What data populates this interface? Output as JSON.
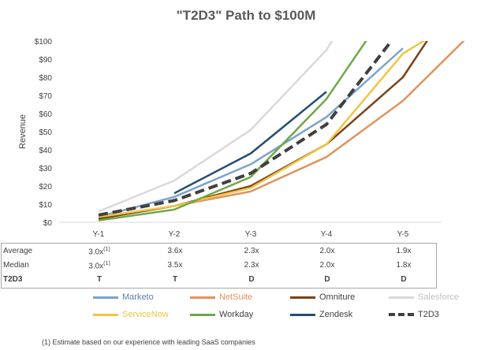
{
  "chart_data": {
    "type": "line",
    "title": "\"T2D3\" Path to $100M",
    "ylabel": "Revenue",
    "xlabel": "",
    "categories": [
      "Y-1",
      "Y-2",
      "Y-3",
      "Y-4",
      "Y-5"
    ],
    "ylim": [
      0,
      100
    ],
    "yticks": [
      "$0",
      "$10",
      "$20",
      "$30",
      "$40",
      "$50",
      "$60",
      "$70",
      "$80",
      "$90",
      "$100"
    ],
    "series": [
      {
        "name": "Marketo",
        "color": "#7ba3cc",
        "dash": false,
        "x": [
          0,
          1,
          2,
          3,
          4
        ],
        "values": [
          3,
          14,
          32,
          58,
          96
        ]
      },
      {
        "name": "NetSuite",
        "color": "#e0925e",
        "dash": false,
        "x": [
          0,
          1,
          2,
          3,
          4,
          4.85
        ],
        "values": [
          2,
          9,
          17,
          36,
          67,
          102
        ]
      },
      {
        "name": "Omniture",
        "color": "#7b4217",
        "dash": false,
        "x": [
          0,
          1,
          2,
          3,
          4,
          4.35
        ],
        "values": [
          2,
          9,
          20,
          43,
          80,
          102
        ]
      },
      {
        "name": "Salesforce",
        "color": "#d9d9d9",
        "dash": false,
        "x": [
          0,
          1,
          2,
          3,
          3.1
        ],
        "values": [
          6,
          23,
          51,
          95,
          102
        ]
      },
      {
        "name": "ServiceNow",
        "color": "#f0c542",
        "dash": false,
        "x": [
          0,
          1,
          2,
          3,
          4,
          4.35
        ],
        "values": [
          3,
          9,
          19,
          43,
          93,
          102
        ]
      },
      {
        "name": "Workday",
        "color": "#70a845",
        "dash": false,
        "x": [
          0,
          1,
          2,
          3,
          3.55
        ],
        "values": [
          1,
          7,
          25,
          68,
          102
        ]
      },
      {
        "name": "Zendesk",
        "color": "#264c73",
        "dash": false,
        "x": [
          1,
          2,
          3
        ],
        "values": [
          16,
          38,
          72
        ]
      },
      {
        "name": "T2D3",
        "color": "#404040",
        "dash": true,
        "x": [
          0,
          1,
          2,
          3,
          3.85
        ],
        "values": [
          4,
          12,
          27,
          54,
          100
        ]
      }
    ]
  },
  "stats_table": {
    "rows": [
      {
        "label": "Average",
        "bold": false,
        "cells": [
          "3.0x",
          "3.6x",
          "2.3x",
          "2.0x",
          "1.9x"
        ],
        "note": "(1)"
      },
      {
        "label": "Median",
        "bold": false,
        "cells": [
          "3.0x",
          "3.5x",
          "2.3x",
          "2.0x",
          "1.8x"
        ],
        "note": "(1)"
      },
      {
        "label": "T2D3",
        "bold": true,
        "cells": [
          "T",
          "T",
          "D",
          "D",
          "D"
        ],
        "note": ""
      }
    ]
  },
  "footnote": "(1)  Estimate based on our experience with leading SaaS companies"
}
